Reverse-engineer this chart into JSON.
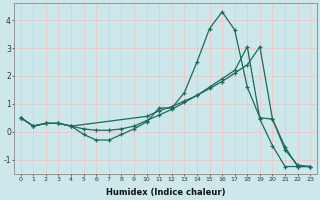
{
  "xlabel": "Humidex (Indice chaleur)",
  "background_color": "#cce8eb",
  "grid_color": "#e8c8c8",
  "line_color": "#1a6b5a",
  "xlim": [
    -0.5,
    23.5
  ],
  "ylim": [
    -1.5,
    4.6
  ],
  "yticks": [
    -1,
    0,
    1,
    2,
    3,
    4
  ],
  "xticks": [
    0,
    1,
    2,
    3,
    4,
    5,
    6,
    7,
    8,
    9,
    10,
    11,
    12,
    13,
    14,
    15,
    16,
    17,
    18,
    19,
    20,
    21,
    22,
    23
  ],
  "line1_x": [
    0,
    1,
    2,
    3,
    4,
    5,
    6,
    7,
    8,
    9,
    10,
    11,
    12,
    13,
    14,
    15,
    16,
    17,
    18,
    19,
    20,
    21,
    22,
    23
  ],
  "line1_y": [
    0.5,
    0.2,
    0.3,
    0.3,
    0.2,
    -0.1,
    -0.3,
    -0.3,
    -0.1,
    0.1,
    0.35,
    0.85,
    0.85,
    1.4,
    2.5,
    3.7,
    4.3,
    3.65,
    1.6,
    0.5,
    0.45,
    -0.65,
    -1.2,
    -1.25
  ],
  "line2_x": [
    0,
    1,
    2,
    3,
    4,
    10,
    11,
    12,
    13,
    14,
    15,
    16,
    17,
    18,
    19,
    20,
    21,
    22,
    23
  ],
  "line2_y": [
    0.5,
    0.2,
    0.3,
    0.3,
    0.2,
    0.55,
    0.75,
    0.9,
    1.1,
    1.3,
    1.55,
    1.8,
    2.1,
    2.4,
    3.05,
    0.45,
    -0.55,
    -1.25,
    -1.25
  ],
  "line3_x": [
    0,
    1,
    2,
    3,
    4,
    5,
    6,
    7,
    8,
    9,
    10,
    11,
    12,
    13,
    14,
    15,
    16,
    17,
    18,
    19,
    20,
    21,
    22,
    23
  ],
  "line3_y": [
    0.5,
    0.2,
    0.3,
    0.3,
    0.2,
    0.1,
    0.05,
    0.05,
    0.1,
    0.2,
    0.4,
    0.6,
    0.8,
    1.05,
    1.3,
    1.6,
    1.9,
    2.2,
    3.05,
    0.45,
    -0.5,
    -1.25,
    -1.25,
    -1.25
  ]
}
